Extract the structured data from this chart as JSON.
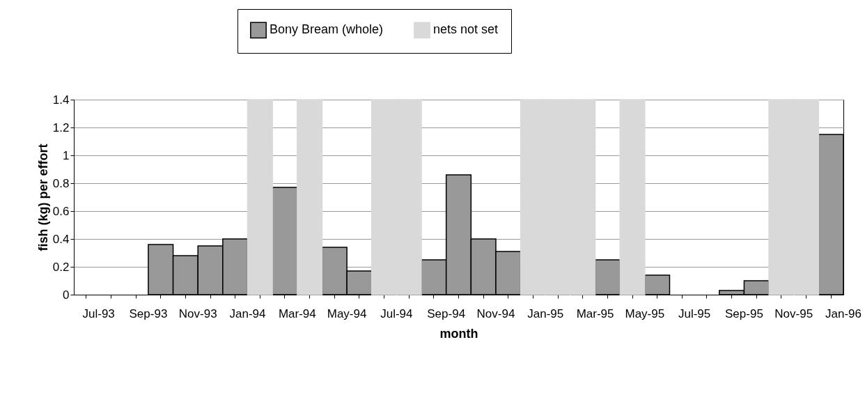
{
  "chart_data": {
    "type": "bar",
    "xlabel": "month",
    "ylabel": "fish (kg) per effort",
    "categories": [
      "Jul-93",
      null,
      "Sep-93",
      null,
      "Nov-93",
      null,
      "Jan-94",
      null,
      "Mar-94",
      null,
      "May-94",
      null,
      "Jul-94",
      null,
      "Sep-94",
      null,
      "Nov-94",
      null,
      "Jan-95",
      null,
      "Mar-95",
      null,
      "May-95",
      null,
      "Jul-95",
      null,
      "Sep-95",
      null,
      "Nov-95",
      null,
      "Jan-96"
    ],
    "series": [
      {
        "name": "Bony Bream (whole)",
        "color": "#999999",
        "values": [
          0,
          0,
          0,
          0.36,
          0.28,
          0.35,
          0.4,
          null,
          0.77,
          null,
          0.34,
          0.17,
          null,
          null,
          0.25,
          0.86,
          0.4,
          0.31,
          null,
          null,
          null,
          0.25,
          null,
          0.14,
          0,
          0,
          0.03,
          0.1,
          null,
          null,
          1.15
        ]
      },
      {
        "name": "nets not set",
        "color": "#d9d9d9",
        "values": [
          null,
          null,
          null,
          null,
          null,
          null,
          null,
          1.4,
          null,
          1.4,
          null,
          null,
          1.4,
          1.4,
          null,
          null,
          null,
          null,
          1.4,
          1.4,
          1.4,
          null,
          1.4,
          null,
          null,
          null,
          null,
          null,
          1.4,
          1.4,
          null
        ]
      }
    ],
    "ylim": [
      0,
      1.4
    ],
    "yticks": [
      0,
      0.2,
      0.4,
      0.6,
      0.8,
      1,
      1.2,
      1.4
    ],
    "grid": "y",
    "legend": "top"
  }
}
